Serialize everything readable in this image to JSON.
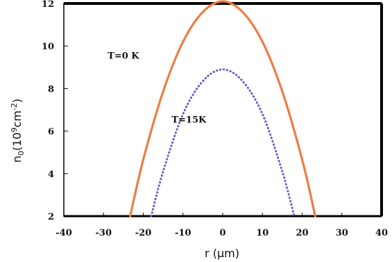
{
  "chart_data": {
    "type": "line",
    "title": "",
    "xlabel": "r (µm)",
    "ylabel": "n0(10⁹cm⁻²)",
    "ylabel_parts": {
      "base": "n",
      "sub": "0",
      "open": "(10",
      "sup1": "9",
      "mid": "cm",
      "sup2": "-2",
      "close": ")"
    },
    "xlim": [
      -40,
      40
    ],
    "ylim": [
      2,
      12
    ],
    "xticks": [
      -40,
      -30,
      -20,
      -10,
      0,
      10,
      20,
      30,
      40
    ],
    "yticks": [
      2,
      4,
      6,
      8,
      10,
      12
    ],
    "grid": false,
    "legend": "none",
    "series": [
      {
        "name": "T=0 K",
        "style": "solid",
        "color": "#f07a45",
        "x": [
          -23.3,
          -20,
          -15,
          -10,
          -5,
          0,
          5,
          10,
          15,
          20,
          23.3
        ],
        "y": [
          2.0,
          4.66,
          7.86,
          10.2,
          11.6,
          12.1,
          11.6,
          10.2,
          7.86,
          4.66,
          2.0
        ]
      },
      {
        "name": "T=15K",
        "style": "dotted",
        "color": "#6a5acd",
        "x": [
          -18.0,
          -15,
          -10,
          -5,
          0,
          5,
          10,
          15,
          18.0
        ],
        "y": [
          2.0,
          4.1,
          6.8,
          8.35,
          8.9,
          8.35,
          6.8,
          4.1,
          2.0
        ]
      }
    ],
    "annotations": [
      {
        "text": "T=0 K",
        "x": -25,
        "y": 9.4
      },
      {
        "text": "T=15K",
        "x": -8.5,
        "y": 6.4
      }
    ]
  }
}
